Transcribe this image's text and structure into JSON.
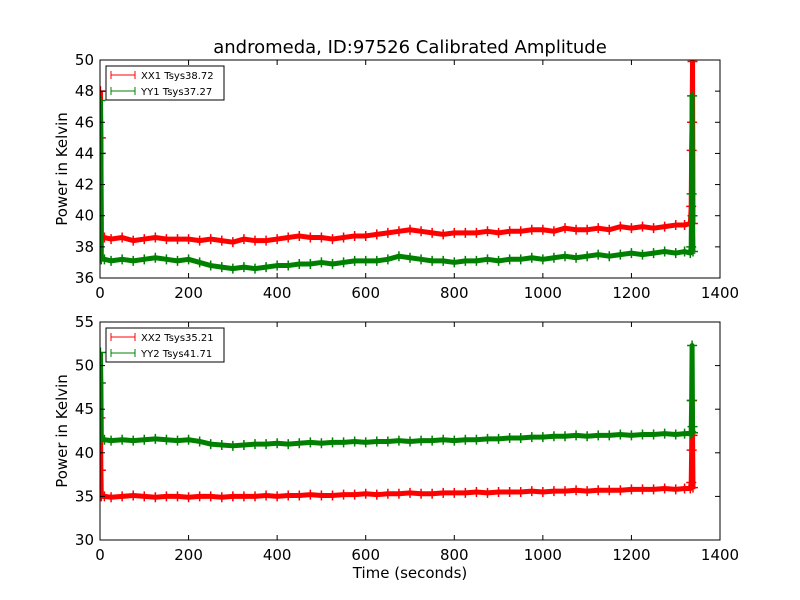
{
  "chart_data": [
    {
      "type": "line",
      "title": "andromeda, ID:97526 Calibrated Amplitude",
      "xlabel": "",
      "ylabel": "Power in Kelvin",
      "xlim": [
        0,
        1400
      ],
      "ylim": [
        36,
        50
      ],
      "xticks": [
        0,
        200,
        400,
        600,
        800,
        1000,
        1200,
        1400
      ],
      "yticks": [
        36,
        38,
        40,
        42,
        44,
        46,
        48,
        50
      ],
      "grid": false,
      "legend": "top-left",
      "marker": "+",
      "series": [
        {
          "name": "XX1 Tsys38.72",
          "color": "#ff0000",
          "x": [
            1,
            2,
            3,
            10,
            25,
            50,
            75,
            100,
            125,
            150,
            175,
            200,
            225,
            250,
            275,
            300,
            325,
            350,
            375,
            400,
            425,
            450,
            475,
            500,
            525,
            550,
            575,
            600,
            625,
            650,
            675,
            700,
            725,
            750,
            775,
            800,
            825,
            850,
            875,
            900,
            925,
            950,
            975,
            1000,
            1025,
            1050,
            1075,
            1100,
            1125,
            1150,
            1175,
            1200,
            1225,
            1250,
            1275,
            1300,
            1320,
            1333,
            1335,
            1336,
            1337,
            1338,
            1339
          ],
          "y": [
            48.0,
            45.0,
            38.6,
            38.6,
            38.5,
            38.6,
            38.4,
            38.5,
            38.6,
            38.5,
            38.5,
            38.5,
            38.4,
            38.5,
            38.4,
            38.3,
            38.5,
            38.4,
            38.4,
            38.5,
            38.6,
            38.7,
            38.6,
            38.6,
            38.5,
            38.6,
            38.7,
            38.7,
            38.8,
            38.9,
            39.0,
            39.1,
            39.0,
            38.9,
            38.8,
            38.9,
            38.9,
            38.9,
            39.0,
            38.9,
            39.0,
            39.0,
            39.1,
            39.1,
            39.0,
            39.2,
            39.1,
            39.1,
            39.2,
            39.1,
            39.3,
            39.2,
            39.3,
            39.2,
            39.3,
            39.4,
            39.4,
            39.5,
            40.6,
            44.2,
            46.0,
            49.9,
            39.5
          ]
        },
        {
          "name": "YY1 Tsys37.27",
          "color": "#008000",
          "x": [
            1,
            2,
            3,
            10,
            25,
            50,
            75,
            100,
            125,
            150,
            175,
            200,
            225,
            250,
            275,
            300,
            325,
            350,
            375,
            400,
            425,
            450,
            475,
            500,
            525,
            550,
            575,
            600,
            625,
            650,
            675,
            700,
            725,
            750,
            775,
            800,
            825,
            850,
            875,
            900,
            925,
            950,
            975,
            1000,
            1025,
            1050,
            1075,
            1100,
            1125,
            1150,
            1175,
            1200,
            1225,
            1250,
            1275,
            1300,
            1320,
            1333,
            1335,
            1336,
            1337,
            1338,
            1339
          ],
          "y": [
            47.4,
            44.0,
            37.2,
            37.2,
            37.1,
            37.2,
            37.1,
            37.2,
            37.3,
            37.2,
            37.1,
            37.2,
            37.0,
            36.8,
            36.7,
            36.6,
            36.7,
            36.6,
            36.7,
            36.8,
            36.8,
            36.9,
            36.9,
            37.0,
            36.9,
            37.0,
            37.1,
            37.1,
            37.1,
            37.2,
            37.4,
            37.3,
            37.2,
            37.1,
            37.1,
            37.0,
            37.1,
            37.1,
            37.2,
            37.1,
            37.2,
            37.2,
            37.3,
            37.2,
            37.3,
            37.4,
            37.3,
            37.4,
            37.5,
            37.4,
            37.5,
            37.6,
            37.5,
            37.6,
            37.7,
            37.6,
            37.7,
            37.6,
            38.0,
            41.4,
            47.7,
            40.0,
            37.7
          ]
        }
      ]
    },
    {
      "type": "line",
      "title": "",
      "xlabel": "Time (seconds)",
      "ylabel": "Power in Kelvin",
      "xlim": [
        0,
        1400
      ],
      "ylim": [
        30,
        55
      ],
      "xticks": [
        0,
        200,
        400,
        600,
        800,
        1000,
        1200,
        1400
      ],
      "yticks": [
        30,
        35,
        40,
        45,
        50,
        55
      ],
      "grid": false,
      "legend": "top-left",
      "marker": "+",
      "series": [
        {
          "name": "XX2 Tsys35.21",
          "color": "#ff0000",
          "x": [
            1,
            2,
            3,
            10,
            25,
            50,
            75,
            100,
            125,
            150,
            175,
            200,
            225,
            250,
            275,
            300,
            325,
            350,
            375,
            400,
            425,
            450,
            475,
            500,
            525,
            550,
            575,
            600,
            625,
            650,
            675,
            700,
            725,
            750,
            775,
            800,
            825,
            850,
            875,
            900,
            925,
            950,
            975,
            1000,
            1025,
            1050,
            1075,
            1100,
            1125,
            1150,
            1175,
            1200,
            1225,
            1250,
            1275,
            1300,
            1320,
            1333,
            1335,
            1336,
            1337,
            1338,
            1339
          ],
          "y": [
            44.0,
            38.0,
            35.0,
            35.0,
            34.9,
            35.0,
            35.1,
            35.0,
            34.9,
            35.0,
            35.0,
            34.9,
            35.0,
            35.0,
            34.9,
            35.0,
            35.0,
            35.0,
            35.1,
            35.0,
            35.1,
            35.1,
            35.2,
            35.1,
            35.1,
            35.2,
            35.2,
            35.3,
            35.2,
            35.3,
            35.3,
            35.4,
            35.3,
            35.3,
            35.4,
            35.4,
            35.4,
            35.5,
            35.4,
            35.5,
            35.5,
            35.5,
            35.6,
            35.5,
            35.6,
            35.6,
            35.7,
            35.6,
            35.7,
            35.7,
            35.7,
            35.8,
            35.8,
            35.8,
            35.9,
            35.8,
            35.9,
            35.9,
            36.6,
            40.3,
            46.0,
            42.0,
            36.0
          ]
        },
        {
          "name": "YY2 Tsys41.71",
          "color": "#008000",
          "x": [
            1,
            2,
            3,
            10,
            25,
            50,
            75,
            100,
            125,
            150,
            175,
            200,
            225,
            250,
            275,
            300,
            325,
            350,
            375,
            400,
            425,
            450,
            475,
            500,
            525,
            550,
            575,
            600,
            625,
            650,
            675,
            700,
            725,
            750,
            775,
            800,
            825,
            850,
            875,
            900,
            925,
            950,
            975,
            1000,
            1025,
            1050,
            1075,
            1100,
            1125,
            1150,
            1175,
            1200,
            1225,
            1250,
            1275,
            1300,
            1320,
            1333,
            1335,
            1336,
            1337,
            1338,
            1339
          ],
          "y": [
            51.5,
            48.0,
            41.5,
            41.5,
            41.4,
            41.5,
            41.4,
            41.5,
            41.6,
            41.5,
            41.4,
            41.5,
            41.3,
            41.0,
            40.9,
            40.8,
            40.9,
            41.0,
            41.0,
            41.1,
            41.0,
            41.1,
            41.2,
            41.1,
            41.2,
            41.2,
            41.3,
            41.2,
            41.3,
            41.3,
            41.4,
            41.3,
            41.4,
            41.4,
            41.5,
            41.4,
            41.5,
            41.5,
            41.6,
            41.6,
            41.7,
            41.7,
            41.8,
            41.8,
            41.9,
            41.9,
            42.0,
            41.9,
            42.0,
            42.0,
            42.1,
            42.0,
            42.1,
            42.1,
            42.2,
            42.1,
            42.2,
            42.2,
            42.4,
            46.0,
            52.3,
            43.0,
            42.3
          ]
        }
      ]
    }
  ]
}
